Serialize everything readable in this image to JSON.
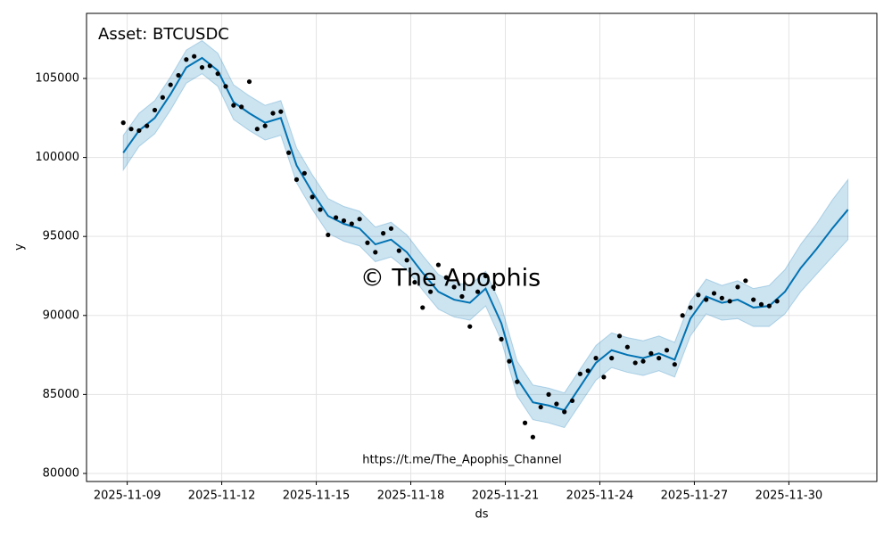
{
  "chart_data": {
    "type": "line",
    "title": "Asset: BTCUSDC",
    "watermark": "© The Apophis",
    "footer": "https://t.me/The_Apophis_Channel",
    "xlabel": "ds",
    "ylabel": "y",
    "grid": true,
    "xlim": [
      "2025-11-07T17",
      "2025-12-02T19"
    ],
    "xticks": [
      "2025-11-09",
      "2025-11-12",
      "2025-11-15",
      "2025-11-18",
      "2025-11-21",
      "2025-11-24",
      "2025-11-27",
      "2025-11-30"
    ],
    "ylim": [
      79490,
      109120
    ],
    "yticks": [
      80000,
      85000,
      90000,
      95000,
      100000,
      105000
    ],
    "forecast": {
      "color": "#0072b2",
      "x": [
        "2025-11-08T21",
        "2025-11-09T09",
        "2025-11-09T21",
        "2025-11-10T09",
        "2025-11-10T21",
        "2025-11-11T09",
        "2025-11-11T21",
        "2025-11-12T09",
        "2025-11-12T21",
        "2025-11-13T09",
        "2025-11-13T21",
        "2025-11-14T09",
        "2025-11-14T21",
        "2025-11-15T09",
        "2025-11-15T21",
        "2025-11-16T09",
        "2025-11-16T21",
        "2025-11-17T09",
        "2025-11-17T21",
        "2025-11-18T09",
        "2025-11-18T21",
        "2025-11-19T09",
        "2025-11-19T21",
        "2025-11-20T09",
        "2025-11-20T21",
        "2025-11-21T09",
        "2025-11-21T21",
        "2025-11-22T09",
        "2025-11-22T21",
        "2025-11-23T09",
        "2025-11-23T21",
        "2025-11-24T09",
        "2025-11-24T21",
        "2025-11-25T09",
        "2025-11-25T21",
        "2025-11-26T09",
        "2025-11-26T21",
        "2025-11-27T09",
        "2025-11-27T21",
        "2025-11-28T09",
        "2025-11-28T21",
        "2025-11-29T09",
        "2025-11-29T21",
        "2025-11-30T09",
        "2025-11-30T21",
        "2025-12-01T09",
        "2025-12-01T21"
      ],
      "values": [
        100300,
        101700,
        102500,
        104000,
        105700,
        106300,
        105500,
        103500,
        102800,
        102200,
        102500,
        99500,
        97800,
        96300,
        95800,
        95500,
        94500,
        94800,
        94000,
        92700,
        91500,
        91000,
        90800,
        91700,
        89500,
        86000,
        84500,
        84300,
        84000,
        85500,
        87000,
        87800,
        87500,
        87300,
        87600,
        87200,
        89800,
        91200,
        90800,
        91000,
        90500,
        90600,
        91500,
        93000,
        94200,
        95500,
        96700
      ],
      "lower": [
        99200,
        100700,
        101500,
        103000,
        104700,
        105300,
        104500,
        102400,
        101700,
        101100,
        101400,
        98400,
        96700,
        95200,
        94700,
        94400,
        93400,
        93700,
        92900,
        91600,
        90400,
        89900,
        89700,
        90600,
        88400,
        84900,
        83400,
        83200,
        82900,
        84400,
        85900,
        86700,
        86400,
        86200,
        86500,
        86100,
        88700,
        90100,
        89700,
        89800,
        89300,
        89300,
        90100,
        91500,
        92600,
        93700,
        94800
      ],
      "upper": [
        101400,
        102800,
        103600,
        105100,
        106800,
        107400,
        106600,
        104600,
        103900,
        103300,
        103600,
        100600,
        98900,
        97400,
        96900,
        96600,
        95600,
        95900,
        95100,
        93800,
        92600,
        92100,
        91900,
        92800,
        90600,
        87100,
        85600,
        85400,
        85100,
        86600,
        88100,
        88900,
        88600,
        88400,
        88700,
        88300,
        90900,
        92300,
        91900,
        92200,
        91700,
        91900,
        92900,
        94500,
        95800,
        97300,
        98600
      ]
    },
    "observed": {
      "color": "#000000",
      "x": [
        "2025-11-08T21",
        "2025-11-09T03",
        "2025-11-09T09",
        "2025-11-09T15",
        "2025-11-09T21",
        "2025-11-10T03",
        "2025-11-10T09",
        "2025-11-10T15",
        "2025-11-10T21",
        "2025-11-11T03",
        "2025-11-11T09",
        "2025-11-11T15",
        "2025-11-11T21",
        "2025-11-12T03",
        "2025-11-12T09",
        "2025-11-12T15",
        "2025-11-12T21",
        "2025-11-13T03",
        "2025-11-13T09",
        "2025-11-13T15",
        "2025-11-13T21",
        "2025-11-14T03",
        "2025-11-14T09",
        "2025-11-14T15",
        "2025-11-14T21",
        "2025-11-15T03",
        "2025-11-15T09",
        "2025-11-15T15",
        "2025-11-15T21",
        "2025-11-16T03",
        "2025-11-16T09",
        "2025-11-16T15",
        "2025-11-16T21",
        "2025-11-17T03",
        "2025-11-17T09",
        "2025-11-17T15",
        "2025-11-17T21",
        "2025-11-18T03",
        "2025-11-18T09",
        "2025-11-18T15",
        "2025-11-18T21",
        "2025-11-19T03",
        "2025-11-19T09",
        "2025-11-19T15",
        "2025-11-19T21",
        "2025-11-20T03",
        "2025-11-20T09",
        "2025-11-20T15",
        "2025-11-20T21",
        "2025-11-21T03",
        "2025-11-21T09",
        "2025-11-21T15",
        "2025-11-21T21",
        "2025-11-22T03",
        "2025-11-22T09",
        "2025-11-22T15",
        "2025-11-22T21",
        "2025-11-23T03",
        "2025-11-23T09",
        "2025-11-23T15",
        "2025-11-23T21",
        "2025-11-24T03",
        "2025-11-24T09",
        "2025-11-24T15",
        "2025-11-24T21",
        "2025-11-25T03",
        "2025-11-25T09",
        "2025-11-25T15",
        "2025-11-25T21",
        "2025-11-26T03",
        "2025-11-26T09",
        "2025-11-26T15",
        "2025-11-26T21",
        "2025-11-27T03",
        "2025-11-27T09",
        "2025-11-27T15",
        "2025-11-27T21",
        "2025-11-28T03",
        "2025-11-28T09",
        "2025-11-28T15",
        "2025-11-28T21",
        "2025-11-29T03",
        "2025-11-29T09",
        "2025-11-29T15"
      ],
      "values": [
        102200,
        101800,
        101700,
        102000,
        103000,
        103800,
        104600,
        105200,
        106200,
        106400,
        105700,
        105800,
        105300,
        104500,
        103300,
        103200,
        104800,
        101800,
        102000,
        102800,
        102900,
        100300,
        98600,
        99000,
        97500,
        96700,
        95100,
        96200,
        96000,
        95800,
        96100,
        94600,
        94000,
        95200,
        95500,
        94100,
        93500,
        92100,
        90500,
        91500,
        93200,
        92400,
        91800,
        91200,
        89300,
        91500,
        92500,
        91800,
        88500,
        87100,
        85800,
        83200,
        82300,
        84200,
        85000,
        84400,
        83900,
        84600,
        86300,
        86500,
        87300,
        86100,
        87300,
        88700,
        88000,
        87000,
        87100,
        87600,
        87300,
        87800,
        86900,
        90000,
        90500,
        91300,
        91000,
        91400,
        91100,
        90900,
        91800,
        92200,
        91000,
        90700,
        90600,
        90900
      ]
    }
  }
}
